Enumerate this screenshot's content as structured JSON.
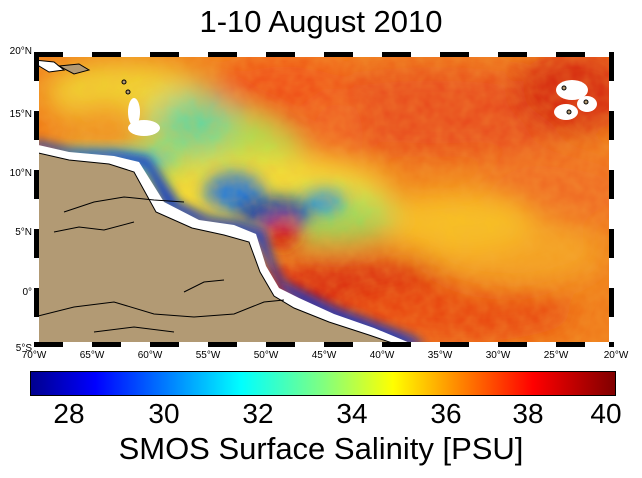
{
  "title": "1-10 August 2010",
  "colorbar_title": "SMOS Surface Salinity [PSU]",
  "lat_ticks": [
    "20°N",
    "15°N",
    "10°N",
    "5°N",
    "0°",
    "5°S"
  ],
  "lon_ticks": [
    "70°W",
    "65°W",
    "60°W",
    "55°W",
    "50°W",
    "45°W",
    "40°W",
    "35°W",
    "30°W",
    "25°W",
    "20°W"
  ],
  "colorbar_ticks": [
    "28",
    "30",
    "32",
    "34",
    "36",
    "38",
    "40"
  ],
  "colors": {
    "land": "#b29a74",
    "coast": "#000000",
    "fresh": "#0a2fc0",
    "salty": "#d81a0a"
  }
}
